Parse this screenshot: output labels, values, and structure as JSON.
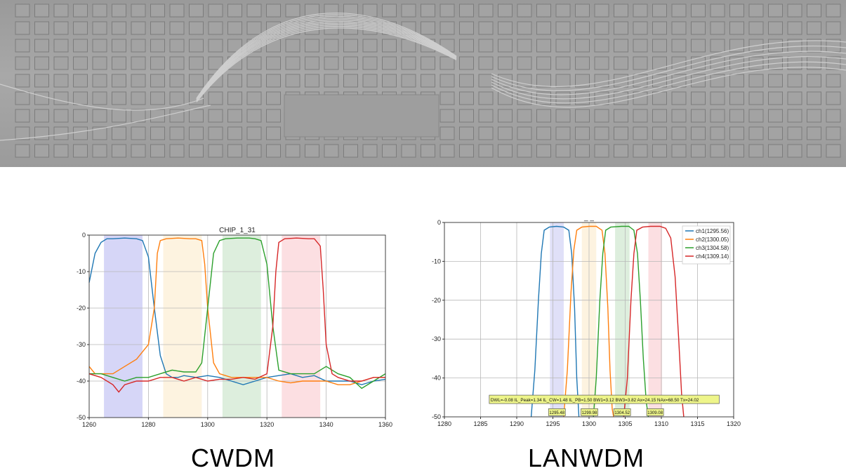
{
  "captions": {
    "left": "CWDM",
    "right": "LANWDM"
  },
  "chart_data": [
    {
      "type": "line",
      "title": "CHIP_1_31",
      "xlabel": "",
      "ylabel": "",
      "xlim": [
        1260,
        1360
      ],
      "ylim": [
        -50,
        0
      ],
      "xticks": [
        1260,
        1280,
        1300,
        1320,
        1340,
        1360
      ],
      "yticks": [
        0,
        -10,
        -20,
        -30,
        -40,
        -50
      ],
      "grid": true,
      "bands": [
        {
          "x0": 1265,
          "x1": 1278,
          "color": "#c8c8f4"
        },
        {
          "x0": 1285,
          "x1": 1298,
          "color": "#fcefd6"
        },
        {
          "x0": 1305,
          "x1": 1318,
          "color": "#d2e8d2"
        },
        {
          "x0": 1325,
          "x1": 1338,
          "color": "#fbd4d8"
        }
      ],
      "series": [
        {
          "color": "#1f77b4",
          "x": [
            1260,
            1262,
            1264,
            1266,
            1268,
            1272,
            1276,
            1278,
            1280,
            1282,
            1284,
            1286,
            1288,
            1290,
            1292,
            1296,
            1300,
            1304,
            1308,
            1312,
            1316,
            1320,
            1324,
            1328,
            1332,
            1336,
            1340,
            1344,
            1348,
            1352,
            1356,
            1360
          ],
          "y": [
            -13,
            -5,
            -2,
            -1,
            -1,
            -0.8,
            -1,
            -1.5,
            -6,
            -20,
            -33,
            -38,
            -39,
            -39,
            -38.5,
            -39,
            -38.5,
            -39,
            -40,
            -41,
            -40,
            -39,
            -38.5,
            -38,
            -39,
            -38.5,
            -40,
            -40,
            -40,
            -41,
            -40,
            -39.5
          ]
        },
        {
          "color": "#ff7f0e",
          "x": [
            1260,
            1262,
            1264,
            1268,
            1272,
            1276,
            1280,
            1282,
            1283,
            1284,
            1286,
            1290,
            1294,
            1296,
            1298,
            1299,
            1300,
            1302,
            1304,
            1308,
            1312,
            1316,
            1320,
            1324,
            1328,
            1332,
            1336,
            1340,
            1344,
            1348,
            1352,
            1356,
            1360
          ],
          "y": [
            -36,
            -38,
            -38,
            -38,
            -36,
            -34,
            -30,
            -20,
            -5,
            -1.5,
            -1,
            -0.8,
            -1,
            -1,
            -1.5,
            -8,
            -20,
            -35,
            -38,
            -39,
            -39,
            -39,
            -39,
            -40,
            -40.5,
            -40,
            -40,
            -40,
            -41,
            -41,
            -40,
            -39,
            -39
          ]
        },
        {
          "color": "#2ca02c",
          "x": [
            1260,
            1264,
            1268,
            1272,
            1276,
            1280,
            1284,
            1288,
            1292,
            1296,
            1298,
            1300,
            1302,
            1304,
            1306,
            1310,
            1314,
            1316,
            1318,
            1320,
            1322,
            1324,
            1328,
            1332,
            1336,
            1340,
            1344,
            1348,
            1352,
            1356,
            1360
          ],
          "y": [
            -38,
            -38,
            -39,
            -40,
            -39,
            -39,
            -38,
            -37,
            -37.5,
            -37.5,
            -35,
            -20,
            -5,
            -1.5,
            -1,
            -0.8,
            -0.8,
            -1,
            -1.5,
            -8,
            -25,
            -37,
            -38,
            -38,
            -38,
            -36,
            -38,
            -39,
            -42,
            -40,
            -38
          ]
        },
        {
          "color": "#d62728",
          "x": [
            1260,
            1264,
            1268,
            1270,
            1272,
            1276,
            1280,
            1284,
            1288,
            1292,
            1296,
            1300,
            1304,
            1308,
            1312,
            1316,
            1320,
            1322,
            1323,
            1324,
            1326,
            1330,
            1334,
            1336,
            1338,
            1339,
            1340,
            1342,
            1344,
            1348,
            1352,
            1356,
            1360
          ],
          "y": [
            -38,
            -39,
            -41,
            -43,
            -41,
            -40,
            -40,
            -39,
            -39,
            -40,
            -39,
            -40,
            -39.5,
            -39.5,
            -39,
            -39.5,
            -38,
            -25,
            -10,
            -2,
            -1,
            -0.8,
            -1,
            -1,
            -3,
            -15,
            -30,
            -38,
            -39,
            -40,
            -40,
            -39,
            -39
          ]
        }
      ]
    },
    {
      "type": "line",
      "title": "_ _",
      "xlabel": "",
      "ylabel": "",
      "xlim": [
        1280,
        1320
      ],
      "ylim": [
        -50,
        0
      ],
      "xticks": [
        1280,
        1285,
        1290,
        1295,
        1300,
        1305,
        1310,
        1315,
        1320
      ],
      "yticks": [
        0,
        -10,
        -20,
        -30,
        -40,
        -50
      ],
      "grid": true,
      "legend": "top-right",
      "bands": [
        {
          "x0": 1294.6,
          "x1": 1296.5,
          "color": "#d6d6f6"
        },
        {
          "x0": 1299.0,
          "x1": 1301.0,
          "color": "#fcefd6"
        },
        {
          "x0": 1303.6,
          "x1": 1305.6,
          "color": "#d2e8d2"
        },
        {
          "x0": 1308.2,
          "x1": 1310.1,
          "color": "#fbd4d8"
        }
      ],
      "series": [
        {
          "name": "ch1(1295.56)",
          "color": "#1f77b4",
          "x": [
            1292.0,
            1292.5,
            1293.0,
            1293.4,
            1293.8,
            1294.5,
            1295.5,
            1296.5,
            1297.2,
            1297.6,
            1298.0,
            1298.3,
            1298.6
          ],
          "y": [
            -50,
            -38,
            -20,
            -8,
            -2,
            -1.2,
            -1,
            -1.2,
            -2,
            -8,
            -22,
            -40,
            -50
          ]
        },
        {
          "name": "ch2(1300.05)",
          "color": "#ff7f0e",
          "x": [
            1296.5,
            1297.0,
            1297.5,
            1297.9,
            1298.3,
            1299.0,
            1300.0,
            1301.0,
            1301.8,
            1302.2,
            1302.6,
            1302.9,
            1303.2,
            1303.4
          ],
          "y": [
            -50,
            -38,
            -18,
            -7,
            -2,
            -1.2,
            -1,
            -1,
            -2,
            -8,
            -22,
            -38,
            -48,
            -50
          ]
        },
        {
          "name": "ch3(1304.58)",
          "color": "#2ca02c",
          "x": [
            1300.6,
            1301.0,
            1301.5,
            1301.9,
            1302.3,
            1303.0,
            1304.5,
            1305.5,
            1306.2,
            1306.7,
            1307.1,
            1307.5,
            1307.9,
            1308.2
          ],
          "y": [
            -50,
            -40,
            -20,
            -8,
            -2,
            -1.2,
            -1,
            -1,
            -2,
            -8,
            -20,
            -35,
            -46,
            -50
          ]
        },
        {
          "name": "ch4(1309.14)",
          "color": "#d62728",
          "x": [
            1304.8,
            1305.3,
            1305.8,
            1306.2,
            1306.6,
            1307.4,
            1308.5,
            1309.8,
            1310.6,
            1311.3,
            1311.9,
            1312.4,
            1312.8,
            1313.1
          ],
          "y": [
            -50,
            -40,
            -20,
            -8,
            -2,
            -1.2,
            -1,
            -1,
            -1.5,
            -4,
            -14,
            -30,
            -44,
            -50
          ]
        }
      ],
      "annotation": {
        "text": "DWL=-0.08    IL_Peak=1.34    IL_CW=1.48    IL_PB=1.50    BW1=3.12    BW3=3.82    Ax=24.15    NAx=68.50    Tx=24.02",
        "markers": [
          "1295.48",
          "1299.98",
          "1304.52",
          "1309.08"
        ]
      }
    }
  ]
}
